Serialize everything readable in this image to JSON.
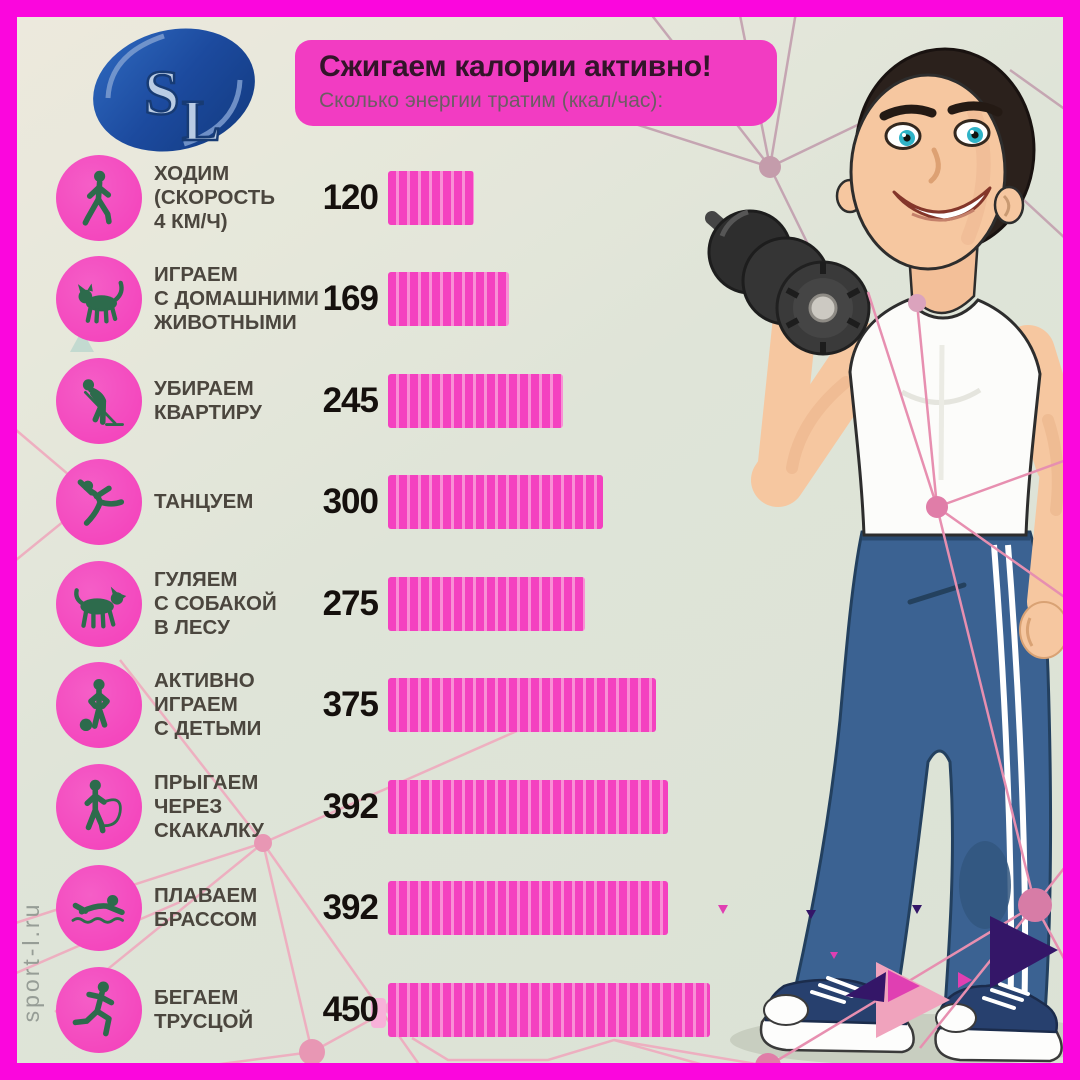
{
  "header": {
    "title": "Сжигаем калории активно!",
    "subtitle": "Сколько энергии тратим (ккал/час):"
  },
  "logo": {
    "monogram_s": "S",
    "monogram_l": "L"
  },
  "watermark": {
    "text": "sport-l.ru"
  },
  "chart_data": {
    "type": "bar",
    "orientation": "horizontal",
    "title": "Сжигаем калории активно!",
    "subtitle": "Сколько энергии тратим (ккал/час):",
    "unit": "ккал/час",
    "value_range": [
      0,
      450
    ],
    "grid": false,
    "legend": false,
    "categories": [
      "ХОДИМ (СКОРОСТЬ 4 КМ/Ч)",
      "ИГРАЕМ С ДОМАШНИМИ ЖИВОТНЫМИ",
      "УБИРАЕМ КВАРТИРУ",
      "ТАНЦУЕМ",
      "ГУЛЯЕМ С СОБАКОЙ В ЛЕСУ",
      "АКТИВНО ИГРАЕМ С ДЕТЬМИ",
      "ПРЫГАЕМ ЧЕРЕЗ СКАКАЛКУ",
      "ПЛАВАЕМ БРАССОМ",
      "БЕГАЕМ ТРУСЦОЙ"
    ],
    "values": [
      120,
      169,
      245,
      300,
      275,
      375,
      392,
      392,
      450
    ],
    "rows": [
      {
        "label_lines": [
          "ХОДИМ",
          "(СКОРОСТЬ",
          "4 КМ/Ч)"
        ],
        "value": 120,
        "icon": "walking-person-icon"
      },
      {
        "label_lines": [
          "ИГРАЕМ",
          "С ДОМАШНИМИ",
          "ЖИВОТНЫМИ"
        ],
        "value": 169,
        "icon": "cat-icon"
      },
      {
        "label_lines": [
          "УБИРАЕМ",
          "КВАРТИРУ"
        ],
        "value": 245,
        "icon": "mopping-person-icon"
      },
      {
        "label_lines": [
          "ТАНЦУЕМ"
        ],
        "value": 300,
        "icon": "dancer-icon"
      },
      {
        "label_lines": [
          "ГУЛЯЕМ",
          "С СОБАКОЙ",
          "В ЛЕСУ"
        ],
        "value": 275,
        "icon": "dog-icon"
      },
      {
        "label_lines": [
          "АКТИВНО",
          "ИГРАЕМ",
          "С ДЕТЬМИ"
        ],
        "value": 375,
        "icon": "playing-with-kids-icon"
      },
      {
        "label_lines": [
          "ПРЫГАЕМ",
          "ЧЕРЕЗ",
          "СКАКАЛКУ"
        ],
        "value": 392,
        "icon": "jump-rope-icon"
      },
      {
        "label_lines": [
          "ПЛАВАЕМ",
          "БРАССОМ"
        ],
        "value": 392,
        "icon": "swimmer-icon"
      },
      {
        "label_lines": [
          "БЕГАЕМ",
          "ТРУСЦОЙ"
        ],
        "value": 450,
        "icon": "runner-icon"
      }
    ]
  },
  "colors": {
    "frame": "#fb06dd",
    "title_box": "#f23cc2",
    "bar": "#f441c0",
    "bar_stripe": "#f98fd6",
    "icon_circle": "#f33eba",
    "silhouette": "#2d6b4c",
    "background": "#dfe4d8"
  }
}
